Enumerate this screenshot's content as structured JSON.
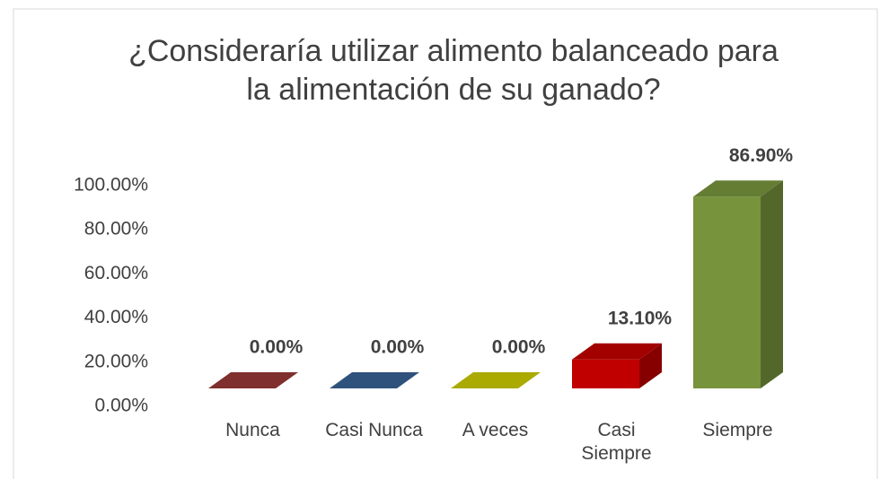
{
  "chart_data": {
    "type": "bar3d",
    "title": "¿Consideraría utilizar alimento balanceado para la alimentación de su ganado?",
    "categories": [
      "Nunca",
      "Casi Nunca",
      "A veces",
      "Casi Siempre",
      "Siempre"
    ],
    "values": [
      0,
      0,
      0,
      13.1,
      86.9
    ],
    "value_labels": [
      "0.00%",
      "0.00%",
      "0.00%",
      "13.10%",
      "86.90%"
    ],
    "colors": [
      "#953735",
      "#376092",
      "#c8c800",
      "#c00000",
      "#77933c"
    ],
    "ylim": [
      0,
      100
    ],
    "yticks": [
      {
        "value": 0,
        "label": "0.00%"
      },
      {
        "value": 20,
        "label": "20.00%"
      },
      {
        "value": 40,
        "label": "40.00%"
      },
      {
        "value": 60,
        "label": "60.00%"
      },
      {
        "value": 80,
        "label": "80.00%"
      },
      {
        "value": 100,
        "label": "100.00%"
      }
    ]
  }
}
